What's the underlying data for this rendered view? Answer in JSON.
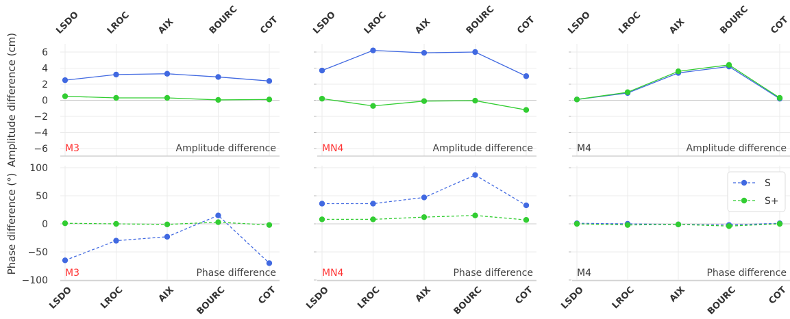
{
  "stations": [
    "LSDO",
    "LROC",
    "AIX",
    "BOURC",
    "COT"
  ],
  "colors": {
    "S": "#4169e1",
    "S+": "#32cd32",
    "red_label": "#ff3333",
    "plain_label": "#333333",
    "grid": "#ebebeb",
    "zero_line": "#cccccc",
    "axis_line": "#bbbbbb",
    "text": "#333333"
  },
  "legend": {
    "position": "upper-right of bottom-right panel",
    "entries": [
      "S",
      "S+"
    ]
  },
  "ylabels": {
    "amplitude": "Amplitude difference (cm)",
    "phase": "Phase difference (°)"
  },
  "chart_data": [
    {
      "type": "line",
      "row": "amplitude",
      "constituent": "M3",
      "label_color": "red",
      "panel_title": "Amplitude difference",
      "categories": [
        "LSDO",
        "LROC",
        "AIX",
        "BOURC",
        "COT"
      ],
      "ylim": [
        -7,
        7
      ],
      "yticks": [
        -6,
        -4,
        -2,
        0,
        2,
        4,
        6
      ],
      "grid": true,
      "series": [
        {
          "name": "S",
          "style": "solid",
          "values": [
            2.5,
            3.2,
            3.3,
            2.9,
            2.4
          ]
        },
        {
          "name": "S+",
          "style": "solid",
          "values": [
            0.5,
            0.3,
            0.3,
            0.05,
            0.1
          ]
        }
      ]
    },
    {
      "type": "line",
      "row": "amplitude",
      "constituent": "MN4",
      "label_color": "red",
      "panel_title": "Amplitude difference",
      "categories": [
        "LSDO",
        "LROC",
        "AIX",
        "BOURC",
        "COT"
      ],
      "ylim": [
        -7,
        7
      ],
      "yticks": [
        -6,
        -4,
        -2,
        0,
        2,
        4,
        6
      ],
      "grid": true,
      "series": [
        {
          "name": "S",
          "style": "solid",
          "values": [
            3.7,
            6.2,
            5.9,
            6.0,
            3.0
          ]
        },
        {
          "name": "S+",
          "style": "solid",
          "values": [
            0.2,
            -0.7,
            -0.1,
            -0.05,
            -1.2
          ]
        }
      ]
    },
    {
      "type": "line",
      "row": "amplitude",
      "constituent": "M4",
      "label_color": "plain",
      "panel_title": "Amplitude difference",
      "categories": [
        "LSDO",
        "LROC",
        "AIX",
        "BOURC",
        "COT"
      ],
      "ylim": [
        -7,
        7
      ],
      "yticks": [
        -6,
        -4,
        -2,
        0,
        2,
        4,
        6
      ],
      "grid": true,
      "series": [
        {
          "name": "S",
          "style": "solid",
          "values": [
            0.1,
            0.9,
            3.4,
            4.2,
            0.2
          ]
        },
        {
          "name": "S+",
          "style": "solid",
          "values": [
            0.1,
            1.0,
            3.6,
            4.4,
            0.3
          ]
        }
      ]
    },
    {
      "type": "line",
      "row": "phase",
      "constituent": "M3",
      "label_color": "red",
      "panel_title": "Phase difference",
      "categories": [
        "LSDO",
        "LROC",
        "AIX",
        "BOURC",
        "COT"
      ],
      "ylim": [
        -100,
        100
      ],
      "yticks": [
        -100,
        -50,
        0,
        50,
        100
      ],
      "grid": true,
      "series": [
        {
          "name": "S",
          "style": "dashed",
          "values": [
            -65,
            -30,
            -23,
            15,
            -70
          ]
        },
        {
          "name": "S+",
          "style": "dashed",
          "values": [
            1,
            0,
            -1,
            3,
            -2
          ]
        }
      ]
    },
    {
      "type": "line",
      "row": "phase",
      "constituent": "MN4",
      "label_color": "red",
      "panel_title": "Phase difference",
      "categories": [
        "LSDO",
        "LROC",
        "AIX",
        "BOURC",
        "COT"
      ],
      "ylim": [
        -100,
        100
      ],
      "yticks": [
        -100,
        -50,
        0,
        50,
        100
      ],
      "grid": true,
      "series": [
        {
          "name": "S",
          "style": "dashed",
          "values": [
            36,
            36,
            47,
            87,
            33
          ]
        },
        {
          "name": "S+",
          "style": "dashed",
          "values": [
            8,
            8,
            12,
            15,
            7
          ]
        }
      ]
    },
    {
      "type": "line",
      "row": "phase",
      "constituent": "M4",
      "label_color": "plain",
      "panel_title": "Phase difference",
      "categories": [
        "LSDO",
        "LROC",
        "AIX",
        "BOURC",
        "COT"
      ],
      "ylim": [
        -100,
        100
      ],
      "yticks": [
        -100,
        -50,
        0,
        50,
        100
      ],
      "grid": true,
      "series": [
        {
          "name": "S",
          "style": "dashed",
          "values": [
            1,
            0,
            -1,
            -2,
            1
          ]
        },
        {
          "name": "S+",
          "style": "dashed",
          "values": [
            0,
            -2,
            -1,
            -4,
            0
          ]
        }
      ]
    }
  ]
}
